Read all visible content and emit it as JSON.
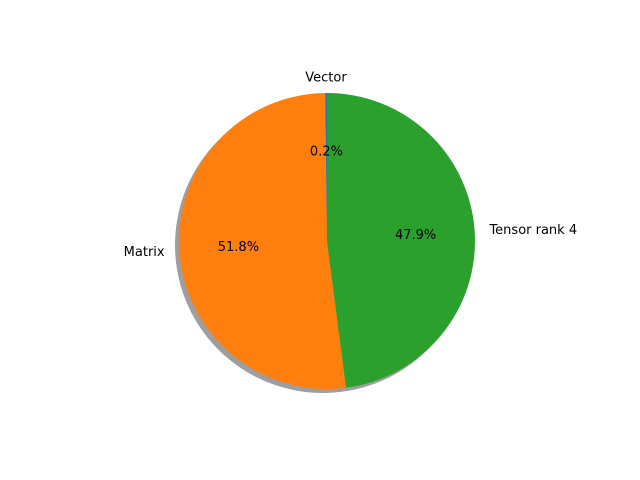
{
  "chart_data": {
    "type": "pie",
    "title": "",
    "categories": [
      "Vector",
      "Matrix",
      "Tensor rank 4"
    ],
    "values": [
      0.2,
      51.8,
      47.9
    ],
    "value_labels": [
      "0.2%",
      "51.8%",
      "47.9%"
    ],
    "colors": [
      "#1f77b4",
      "#ff7f0e",
      "#2ca02c"
    ],
    "start_angle_degrees": 90,
    "direction": "counterclockwise",
    "shadow": true,
    "legend": "none"
  }
}
